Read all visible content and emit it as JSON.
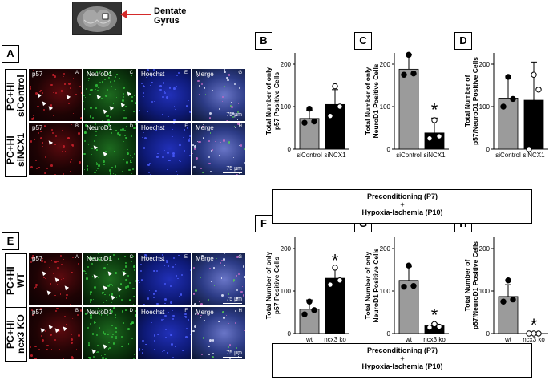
{
  "brain_label": {
    "line1": "Dentate",
    "line2": "Gyrus"
  },
  "panels": {
    "A": "A",
    "B": "B",
    "C": "C",
    "D": "D",
    "E": "E",
    "F": "F",
    "G": "G",
    "H": "H"
  },
  "row_labels": {
    "top1": {
      "line1": "PC+HI",
      "line2": "siControl"
    },
    "top2": {
      "line1": "PC+HI",
      "line2": "siNCX1"
    },
    "bot1": {
      "line1": "PC+HI",
      "line2": "WT"
    },
    "bot2": {
      "line1": "PC+HI",
      "line2": "ncx3 KO"
    }
  },
  "channels": [
    "p57",
    "NeuroD1",
    "Hoechst",
    "Merge"
  ],
  "tile_letters": {
    "row1": [
      "A",
      "C",
      "E",
      "G"
    ],
    "row2": [
      "B",
      "D",
      "F",
      "H"
    ]
  },
  "scale_label": "75 µm",
  "condition_box": {
    "line1": "Preconditioning (P7)",
    "line2": "+",
    "line3": "Hypoxia-Ischemia  (P10)"
  },
  "colors": {
    "p57": "#c8202a",
    "neurod1": "#33c23c",
    "hoechst": "#2a3cd8",
    "bar_gray": "#9b9b9b",
    "bar_black": "#000000"
  },
  "chart_data": [
    {
      "panel": "B",
      "type": "bar",
      "categories": [
        "siControl",
        "siNCX1"
      ],
      "values": [
        72,
        105
      ],
      "errors": [
        20,
        35
      ],
      "ylabel": "Total Number of only p57 Positive Cells",
      "ylim": [
        0,
        200
      ],
      "yticks": [
        0,
        100,
        200
      ],
      "significant": [
        false,
        false
      ],
      "points": [
        [
          62,
          65,
          95
        ],
        [
          78,
          100,
          148
        ]
      ]
    },
    {
      "panel": "C",
      "type": "bar",
      "categories": [
        "siControl",
        "siNCX1"
      ],
      "values": [
        188,
        38
      ],
      "errors": [
        35,
        35
      ],
      "ylabel": "Total Number of only NeuroD1 Positive Cells",
      "ylim": [
        0,
        200
      ],
      "yticks": [
        0,
        100,
        200
      ],
      "significant": [
        false,
        true
      ],
      "points": [
        [
          175,
          178,
          222
        ],
        [
          25,
          30,
          68
        ]
      ]
    },
    {
      "panel": "D",
      "type": "bar",
      "categories": [
        "siControl",
        "siNCX1"
      ],
      "values": [
        120,
        115
      ],
      "errors": [
        45,
        90
      ],
      "ylabel": "Total Number of p57/NeuroD1 Positive Cells",
      "ylim": [
        0,
        200
      ],
      "yticks": [
        0,
        100,
        200
      ],
      "significant": [
        false,
        false
      ],
      "points": [
        [
          100,
          118,
          170
        ],
        [
          0,
          140,
          175
        ]
      ]
    },
    {
      "panel": "F",
      "type": "bar",
      "categories": [
        "wt",
        "ncx3 ko"
      ],
      "values": [
        57,
        130
      ],
      "errors": [
        22,
        22
      ],
      "ylabel": "Total Number of only p57 Positive Cells",
      "ylim": [
        0,
        200
      ],
      "yticks": [
        0,
        100,
        200
      ],
      "significant": [
        false,
        true
      ],
      "points": [
        [
          45,
          55,
          75
        ],
        [
          115,
          125,
          155
        ]
      ]
    },
    {
      "panel": "G",
      "type": "bar",
      "categories": [
        "wt",
        "ncx3 ko"
      ],
      "values": [
        125,
        18
      ],
      "errors": [
        32,
        6
      ],
      "ylabel": "Total Number of only NeuroD1 Positive Cells",
      "ylim": [
        0,
        200
      ],
      "yticks": [
        0,
        100,
        200
      ],
      "significant": [
        false,
        true
      ],
      "points": [
        [
          110,
          112,
          160
        ],
        [
          14,
          16,
          22
        ]
      ]
    },
    {
      "panel": "H",
      "type": "bar",
      "categories": [
        "wt",
        "ncx3 ko"
      ],
      "values": [
        87,
        0
      ],
      "errors": [
        28,
        0
      ],
      "ylabel": "Total Number of p57/NeuroD1 Positive Cells",
      "ylim": [
        0,
        200
      ],
      "yticks": [
        0,
        100,
        200
      ],
      "significant": [
        false,
        true
      ],
      "points": [
        [
          75,
          80,
          125
        ],
        [
          0,
          0,
          0
        ]
      ]
    }
  ]
}
